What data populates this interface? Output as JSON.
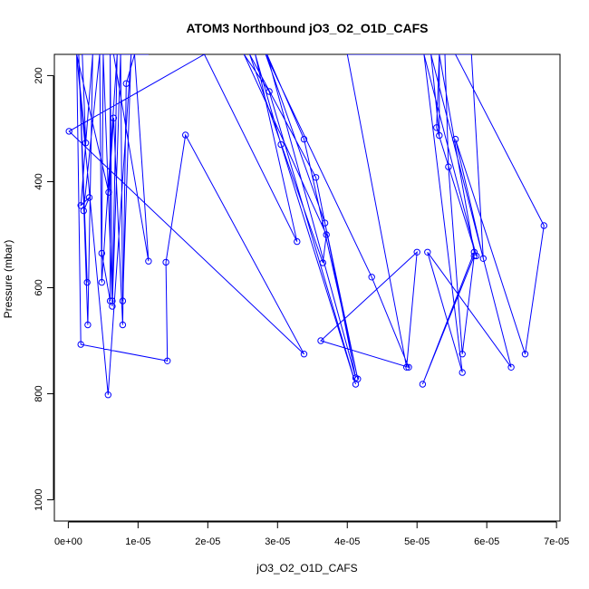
{
  "chart_data": {
    "type": "line",
    "title": "ATOM3 Northbound jO3_O2_O1D_CAFS",
    "xlabel": "jO3_O2_O1D_CAFS",
    "ylabel": "Pressure (mbar)",
    "xlim": [
      -2e-06,
      7.05e-05
    ],
    "ylim": [
      1040,
      160
    ],
    "y_reversed": true,
    "x_ticks": [
      0,
      1e-05,
      2e-05,
      3e-05,
      4e-05,
      5e-05,
      6e-05,
      7e-05
    ],
    "x_tick_labels": [
      "0e+00",
      "1e-05",
      "2e-05",
      "3e-05",
      "4e-05",
      "5e-05",
      "6e-05",
      "7e-05"
    ],
    "y_ticks": [
      200,
      400,
      600,
      800,
      1000
    ],
    "y_tick_labels": [
      "200",
      "400",
      "600",
      "800",
      "1000"
    ],
    "grid": false,
    "series_color": "#0000ff",
    "marker": "open-circle",
    "series": [
      {
        "points": [
          [
            1.5e-06,
            160
          ],
          [
            2.7e-06,
            590
          ],
          [
            1.5e-06,
            160
          ],
          [
            2.8e-06,
            670
          ],
          [
            3.5e-06,
            160
          ],
          [
            1.8e-06,
            445
          ],
          [
            3e-06,
            430
          ],
          [
            2.2e-06,
            455
          ],
          [
            4.5e-06,
            160
          ],
          [
            4.8e-06,
            590
          ],
          [
            7e-06,
            160
          ],
          [
            6.3e-06,
            625
          ],
          [
            5e-06,
            160
          ],
          [
            4.8e-06,
            535
          ],
          [
            6e-06,
            625
          ],
          [
            6e-06,
            160
          ],
          [
            6.3e-06,
            635
          ],
          [
            7.5e-06,
            160
          ],
          [
            7.8e-06,
            625
          ],
          [
            9e-06,
            160
          ],
          [
            5.7e-06,
            802
          ],
          [
            1.2e-06,
            160
          ],
          [
            5.8e-06,
            420
          ],
          [
            6.5e-06,
            280
          ],
          [
            7.8e-06,
            670
          ],
          [
            8.3e-06,
            215
          ],
          [
            9.5e-06,
            160
          ],
          [
            1.15e-05,
            550
          ],
          [
            6.5e-06,
            160
          ],
          [
            1.15e-05,
            160
          ],
          [
            2e-06,
            160
          ],
          [
            2.5e-06,
            327
          ],
          [
            1.2e-06,
            160
          ],
          [
            1.8e-06,
            707
          ],
          [
            1.42e-05,
            738
          ],
          [
            1.4e-05,
            552
          ],
          [
            1.68e-05,
            312
          ],
          [
            3.38e-05,
            725
          ],
          [
            1e-07,
            305
          ],
          [
            1.95e-05,
            160
          ],
          [
            3.28e-05,
            513
          ],
          [
            2.68e-05,
            160
          ],
          [
            3.05e-05,
            330
          ],
          [
            4.12e-05,
            782
          ],
          [
            2.88e-05,
            230
          ],
          [
            2.52e-05,
            160
          ],
          [
            3.7e-05,
            500
          ],
          [
            3.65e-05,
            553
          ],
          [
            2.6e-05,
            160
          ],
          [
            3.55e-05,
            392
          ],
          [
            4.12e-05,
            770
          ],
          [
            2.85e-05,
            160
          ],
          [
            3.38e-05,
            320
          ],
          [
            4.15e-05,
            772
          ],
          [
            3.68e-05,
            478
          ],
          [
            2.83e-05,
            160
          ],
          [
            4.35e-05,
            580
          ],
          [
            4.88e-05,
            750
          ],
          [
            3.62e-05,
            700
          ],
          [
            5e-05,
            533
          ],
          [
            4.85e-05,
            750
          ],
          [
            4e-05,
            160
          ],
          [
            5.4e-05,
            160
          ],
          [
            5.45e-05,
            372
          ],
          [
            5.65e-05,
            725
          ],
          [
            5.82e-05,
            540
          ],
          [
            5.08e-05,
            782
          ],
          [
            5.82e-05,
            533
          ],
          [
            5.32e-05,
            160
          ],
          [
            5.28e-05,
            298
          ],
          [
            5.85e-05,
            540
          ],
          [
            5.1e-05,
            160
          ],
          [
            5.65e-05,
            760
          ],
          [
            5.15e-05,
            533
          ],
          [
            6.35e-05,
            750
          ],
          [
            5.2e-05,
            160
          ],
          [
            5.32e-05,
            313
          ],
          [
            5.32e-05,
            160
          ],
          [
            5.78e-05,
            160
          ],
          [
            5.95e-05,
            545
          ],
          [
            5.55e-05,
            320
          ],
          [
            6.55e-05,
            725
          ],
          [
            6.82e-05,
            483
          ],
          [
            5.55e-05,
            160
          ]
        ]
      }
    ]
  }
}
